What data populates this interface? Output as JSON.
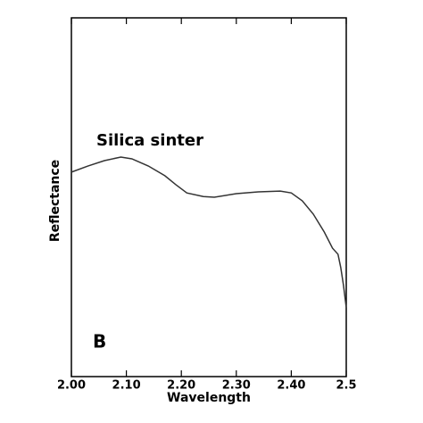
{
  "chart_data": {
    "type": "line",
    "annotations": [
      "Silica sinter",
      "B"
    ],
    "x_label": "Wavelength",
    "y_label": "Reflectance",
    "x": [
      2.0,
      2.03,
      2.06,
      2.09,
      2.11,
      2.14,
      2.17,
      2.19,
      2.21,
      2.24,
      2.26,
      2.3,
      2.34,
      2.38,
      2.4,
      2.42,
      2.44,
      2.46,
      2.475,
      2.485,
      2.49,
      2.495,
      2.5
    ],
    "values": [
      0.57,
      0.587,
      0.602,
      0.612,
      0.607,
      0.587,
      0.56,
      0.535,
      0.512,
      0.502,
      0.5,
      0.51,
      0.515,
      0.517,
      0.512,
      0.49,
      0.453,
      0.403,
      0.358,
      0.341,
      0.304,
      0.254,
      0.192
    ],
    "color": "#333333",
    "xlim": [
      2.0,
      2.5
    ],
    "ylim": [
      0,
      1
    ],
    "xticks": [
      {
        "value": 2.0,
        "label": "2.00"
      },
      {
        "value": 2.1,
        "label": "2.10"
      },
      {
        "value": 2.2,
        "label": "2.20"
      },
      {
        "value": 2.3,
        "label": "2.30"
      },
      {
        "value": 2.4,
        "label": "2.40"
      },
      2.5
    ]
  }
}
